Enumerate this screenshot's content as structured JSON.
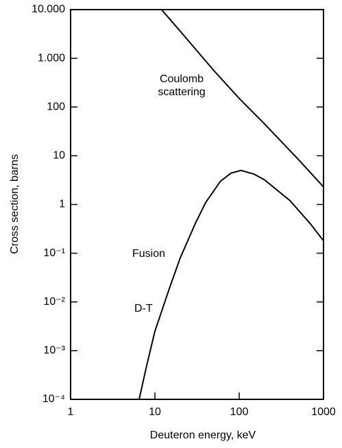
{
  "chart_data": {
    "type": "line",
    "xlabel": "Deuteron energy, keV",
    "ylabel": "Cross section, barns",
    "xscale": "log",
    "yscale": "log",
    "xlim": [
      1,
      1000
    ],
    "ylim": [
      0.0001,
      10000
    ],
    "xticks": [
      1,
      10,
      100,
      1000
    ],
    "yticks": [
      {
        "value": 10000,
        "label": "10.000"
      },
      {
        "value": 1000,
        "label": "1.000"
      },
      100,
      10,
      1,
      {
        "value": 0.1,
        "label": "10⁻¹"
      },
      {
        "value": 0.01,
        "label": "10⁻²"
      },
      {
        "value": 0.001,
        "label": "10⁻³"
      },
      {
        "value": 0.0001,
        "label": "10⁻⁴"
      }
    ],
    "series": [
      {
        "color": "#000000",
        "x": [
          12,
          20,
          50,
          100,
          200,
          500,
          1000
        ],
        "values": [
          10000,
          3600,
          560,
          150,
          45,
          8.5,
          2.3
        ]
      },
      {
        "color": "#000000",
        "x": [
          6.5,
          8,
          10,
          15,
          20,
          30,
          40,
          60,
          80,
          105,
          150,
          200,
          400,
          700,
          1000
        ],
        "values": [
          0.0001,
          0.0005,
          0.0025,
          0.02,
          0.08,
          0.4,
          1.1,
          3,
          4.4,
          5,
          4.2,
          3.2,
          1.2,
          0.4,
          0.18
        ]
      }
    ],
    "annotations": [
      "Coulomb",
      "scattering",
      "Fusion",
      "D-T"
    ]
  }
}
